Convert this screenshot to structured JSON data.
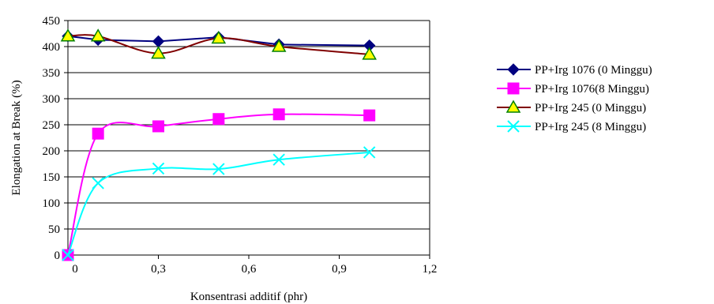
{
  "chart_data": {
    "type": "line",
    "title": "",
    "xlabel": "Konsentrasi additif (phr)",
    "ylabel": "Elongation at Break (%)",
    "xlim": [
      0,
      1.2
    ],
    "ylim": [
      0,
      450
    ],
    "xticks": [
      0,
      0.3,
      0.6,
      0.9,
      1.2
    ],
    "xtick_labels": [
      "0",
      "0,3",
      "0,6",
      "0,9",
      "1,2"
    ],
    "yticks": [
      0,
      50,
      100,
      150,
      200,
      250,
      300,
      350,
      400,
      450
    ],
    "ytick_labels": [
      "0",
      "50",
      "100",
      "150",
      "200",
      "250",
      "300",
      "350",
      "400",
      "450"
    ],
    "grid": "horizontal",
    "legend_position": "right",
    "series": [
      {
        "name": "PP+Irg 1076 (0 Minggu)",
        "color": "#000080",
        "marker": "diamond",
        "marker_fill": "#000080",
        "smooth": false,
        "x": [
          0,
          0.1,
          0.3,
          0.5,
          0.7,
          1.0
        ],
        "y": [
          420,
          413,
          410,
          418,
          404,
          402
        ]
      },
      {
        "name": "PP+Irg 1076(8 Minggu)",
        "color": "#ff00ff",
        "marker": "square",
        "marker_fill": "#ff00ff",
        "smooth": true,
        "x": [
          0,
          0.1,
          0.3,
          0.5,
          0.7,
          1.0
        ],
        "y": [
          0,
          233,
          247,
          261,
          270,
          268
        ]
      },
      {
        "name": "PP+Irg 245 (0 Minggu)",
        "color": "#800000",
        "marker": "triangle",
        "marker_fill": "#ffff00",
        "marker_stroke": "#008000",
        "smooth": true,
        "x": [
          0,
          0.1,
          0.3,
          0.5,
          0.7,
          1.0
        ],
        "y": [
          420,
          420,
          387,
          416,
          400,
          385
        ]
      },
      {
        "name": "PP+Irg 245 (8 Minggu)",
        "color": "#00ffff",
        "marker": "x",
        "marker_fill": "#00ffff",
        "smooth": true,
        "x": [
          0,
          0.1,
          0.3,
          0.5,
          0.7,
          1.0
        ],
        "y": [
          0,
          138,
          166,
          165,
          183,
          197
        ]
      }
    ]
  }
}
